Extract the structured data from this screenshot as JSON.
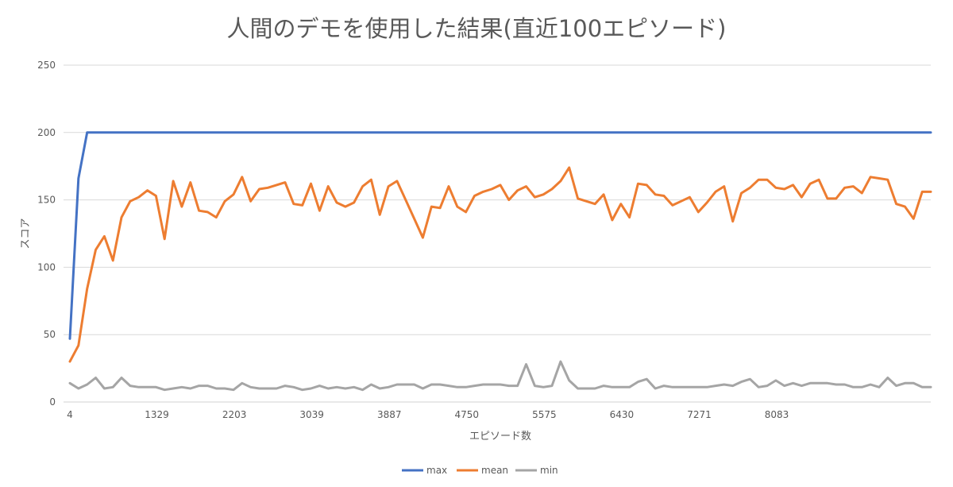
{
  "chart_data": {
    "type": "line",
    "title": "人間のデモを使用した結果(直近100エピソード)",
    "xlabel": "エピソード数",
    "ylabel": "スコア",
    "ylim": [
      0,
      250
    ],
    "yticks": [
      0,
      50,
      100,
      150,
      200,
      250
    ],
    "grid": true,
    "legend_position": "bottom",
    "x_tick_labels": [
      "4",
      "1329",
      "2203",
      "3039",
      "3887",
      "4750",
      "5575",
      "6430",
      "7271",
      "8083"
    ],
    "point_count": 101,
    "series": [
      {
        "name": "max",
        "color": "#4472C4",
        "values": [
          47,
          166,
          200,
          200,
          200,
          200,
          200,
          200,
          200,
          200,
          200,
          200,
          200,
          200,
          200,
          200,
          200,
          200,
          200,
          200,
          200,
          200,
          200,
          200,
          200,
          200,
          200,
          200,
          200,
          200,
          200,
          200,
          200,
          200,
          200,
          200,
          200,
          200,
          200,
          200,
          200,
          200,
          200,
          200,
          200,
          200,
          200,
          200,
          200,
          200,
          200,
          200,
          200,
          200,
          200,
          200,
          200,
          200,
          200,
          200,
          200,
          200,
          200,
          200,
          200,
          200,
          200,
          200,
          200,
          200,
          200,
          200,
          200,
          200,
          200,
          200,
          200,
          200,
          200,
          200,
          200,
          200,
          200,
          200,
          200,
          200,
          200,
          200,
          200,
          200,
          200,
          200,
          200,
          200,
          200,
          200,
          200,
          200,
          200,
          200,
          200
        ]
      },
      {
        "name": "mean",
        "color": "#ED7D31",
        "values": [
          30,
          42,
          84,
          113,
          123,
          105,
          137,
          149,
          152,
          157,
          153,
          121,
          164,
          145,
          163,
          142,
          141,
          137,
          149,
          154,
          167,
          149,
          158,
          159,
          161,
          163,
          147,
          146,
          162,
          142,
          160,
          148,
          145,
          148,
          160,
          165,
          139,
          160,
          164,
          150,
          136,
          122,
          145,
          144,
          160,
          145,
          141,
          153,
          156,
          158,
          161,
          150,
          157,
          160,
          152,
          154,
          158,
          164,
          174,
          151,
          149,
          147,
          154,
          135,
          147,
          137,
          162,
          161,
          154,
          153,
          146,
          149,
          152,
          141,
          148,
          156,
          160,
          134,
          155,
          159,
          165,
          165,
          159,
          158,
          161,
          152,
          162,
          165,
          151,
          151,
          159,
          160,
          155,
          167,
          166,
          165,
          147,
          145,
          136,
          156,
          156
        ]
      },
      {
        "name": "min",
        "color": "#A5A5A5",
        "values": [
          14,
          10,
          13,
          18,
          10,
          11,
          18,
          12,
          11,
          11,
          11,
          9,
          10,
          11,
          10,
          12,
          12,
          10,
          10,
          9,
          14,
          11,
          10,
          10,
          10,
          12,
          11,
          9,
          10,
          12,
          10,
          11,
          10,
          11,
          9,
          13,
          10,
          11,
          13,
          13,
          13,
          10,
          13,
          13,
          12,
          11,
          11,
          12,
          13,
          13,
          13,
          12,
          12,
          28,
          12,
          11,
          12,
          30,
          16,
          10,
          10,
          10,
          12,
          11,
          11,
          11,
          15,
          17,
          10,
          12,
          11,
          11,
          11,
          11,
          11,
          12,
          13,
          12,
          15,
          17,
          11,
          12,
          16,
          12,
          14,
          12,
          14,
          14,
          14,
          13,
          13,
          11,
          11,
          13,
          11,
          18,
          12,
          14,
          14,
          11,
          11
        ]
      }
    ]
  }
}
